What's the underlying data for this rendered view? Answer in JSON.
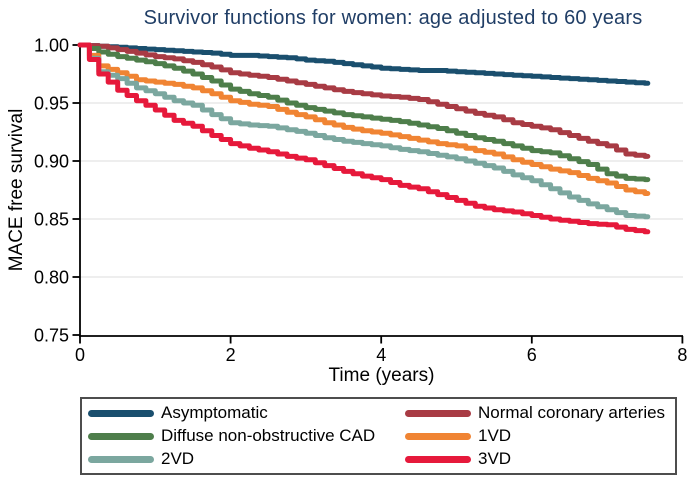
{
  "page": {
    "background": "#ffffff"
  },
  "chart_data": {
    "type": "line",
    "variant": "kaplan-meier-step-survival",
    "title": "Survivor functions for women: age adjusted to 60 years",
    "title_color": "#203E66",
    "xlabel": "Time (years)",
    "ylabel": "MACE free survival",
    "xlim": [
      0,
      8
    ],
    "ylim": [
      0.75,
      1.0
    ],
    "xticks": [
      0,
      2,
      4,
      6,
      8
    ],
    "xtick_labels": [
      "0",
      "2",
      "4",
      "6",
      "8"
    ],
    "yticks": [
      1.0,
      0.95,
      0.9,
      0.85,
      0.8,
      0.75
    ],
    "ytick_labels": [
      "1.00",
      "0.95",
      "0.90",
      "0.85",
      "0.80",
      "0.75"
    ],
    "grid": {
      "horizontal_at": [
        0.95,
        0.9,
        0.85,
        0.8
      ],
      "color": "#e4e4e4"
    },
    "axis_color": "#000000",
    "t_start": 0,
    "t_step": 0.25,
    "t_end": 7.5,
    "series": [
      {
        "name": "Asymptomatic",
        "color": "#1A4F6E",
        "values": [
          1.0,
          0.999,
          0.998,
          0.997,
          0.996,
          0.995,
          0.994,
          0.993,
          0.991,
          0.991,
          0.99,
          0.989,
          0.987,
          0.986,
          0.984,
          0.982,
          0.98,
          0.979,
          0.978,
          0.978,
          0.977,
          0.976,
          0.975,
          0.974,
          0.973,
          0.972,
          0.971,
          0.97,
          0.969,
          0.968,
          0.967
        ]
      },
      {
        "name": "Normal coronary arteries",
        "color": "#A83B44",
        "values": [
          1.0,
          0.999,
          0.996,
          0.993,
          0.99,
          0.988,
          0.985,
          0.981,
          0.976,
          0.974,
          0.972,
          0.969,
          0.966,
          0.963,
          0.96,
          0.958,
          0.956,
          0.955,
          0.953,
          0.949,
          0.945,
          0.941,
          0.938,
          0.933,
          0.93,
          0.927,
          0.922,
          0.917,
          0.913,
          0.906,
          0.904
        ]
      },
      {
        "name": "Diffuse non-obstructive CAD",
        "color": "#4E7E4B",
        "values": [
          1.0,
          0.994,
          0.99,
          0.987,
          0.984,
          0.98,
          0.975,
          0.969,
          0.962,
          0.958,
          0.955,
          0.95,
          0.946,
          0.943,
          0.94,
          0.938,
          0.936,
          0.934,
          0.931,
          0.928,
          0.924,
          0.92,
          0.917,
          0.913,
          0.909,
          0.907,
          0.902,
          0.897,
          0.889,
          0.885,
          0.884
        ]
      },
      {
        "name": "1VD",
        "color": "#F08433",
        "values": [
          1.0,
          0.982,
          0.976,
          0.97,
          0.968,
          0.966,
          0.963,
          0.958,
          0.952,
          0.949,
          0.947,
          0.942,
          0.938,
          0.933,
          0.929,
          0.926,
          0.924,
          0.921,
          0.918,
          0.915,
          0.913,
          0.909,
          0.906,
          0.901,
          0.897,
          0.893,
          0.89,
          0.885,
          0.881,
          0.875,
          0.872
        ]
      },
      {
        "name": "2VD",
        "color": "#7BA79F",
        "values": [
          1.0,
          0.977,
          0.971,
          0.963,
          0.958,
          0.952,
          0.948,
          0.94,
          0.933,
          0.931,
          0.93,
          0.927,
          0.924,
          0.92,
          0.917,
          0.915,
          0.913,
          0.91,
          0.908,
          0.905,
          0.902,
          0.898,
          0.894,
          0.888,
          0.883,
          0.876,
          0.869,
          0.863,
          0.858,
          0.853,
          0.852
        ]
      },
      {
        "name": "3VD",
        "color": "#E6193B",
        "values": [
          1.0,
          0.975,
          0.961,
          0.952,
          0.944,
          0.935,
          0.93,
          0.922,
          0.915,
          0.911,
          0.908,
          0.904,
          0.901,
          0.896,
          0.891,
          0.887,
          0.884,
          0.879,
          0.876,
          0.871,
          0.866,
          0.861,
          0.858,
          0.856,
          0.853,
          0.85,
          0.848,
          0.846,
          0.845,
          0.841,
          0.839
        ]
      }
    ],
    "legend": {
      "position": "bottom",
      "border_color": "#4d4d4d",
      "rows": [
        [
          "Asymptomatic",
          "Normal coronary arteries"
        ],
        [
          "Diffuse non-obstructive CAD",
          "1VD"
        ],
        [
          "2VD",
          "3VD"
        ]
      ]
    }
  }
}
